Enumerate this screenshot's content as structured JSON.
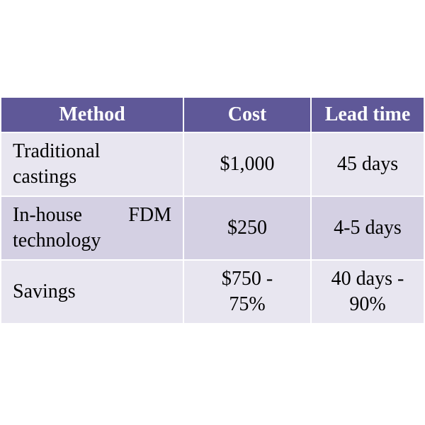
{
  "table": {
    "headers": {
      "method": "Method",
      "cost": "Cost",
      "lead_time": "Lead time"
    },
    "rows": [
      {
        "method_line1": "Traditional",
        "method_line2": "castings",
        "cost_line1": "$1,000",
        "cost_line2": "",
        "lead_line1": "45 days",
        "lead_line2": ""
      },
      {
        "method_line1": "In-house FDM",
        "method_line2": "technology",
        "cost_line1": "$250",
        "cost_line2": "",
        "lead_line1": "4-5 days",
        "lead_line2": ""
      },
      {
        "method_line1": "Savings",
        "method_line2": "",
        "cost_line1": "$750 -",
        "cost_line2": "75%",
        "lead_line1": "40 days -",
        "lead_line2": "90%"
      }
    ]
  },
  "colors": {
    "header_bg": "#5f5898",
    "header_text": "#ffffff",
    "row_light": "#e8e6f0",
    "row_dark": "#d4d0e3"
  }
}
